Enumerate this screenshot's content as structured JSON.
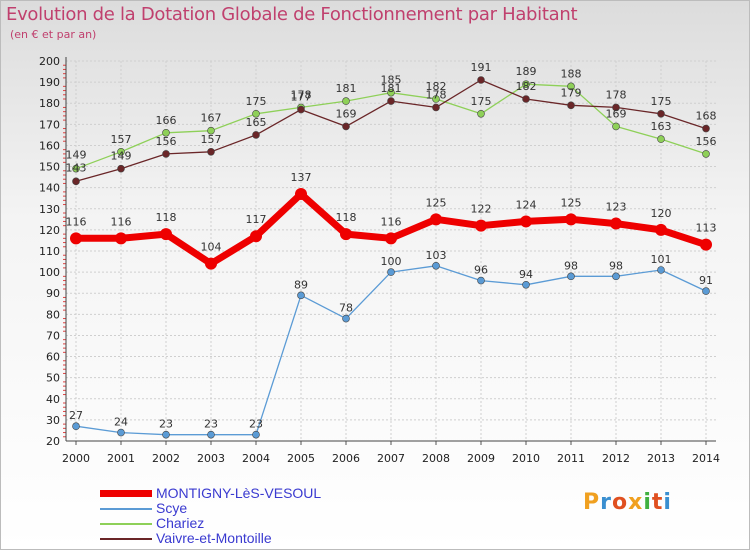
{
  "title": "Evolution de la Dotation Globale de Fonctionnement par Habitant",
  "subtitle": "(en € et par an)",
  "logo": {
    "text": "Proxiti",
    "colors": [
      "#f0a020",
      "#3a8fd0",
      "#e05020",
      "#f0a020",
      "#40b040",
      "#e05020",
      "#3a8fd0"
    ]
  },
  "chart_data": {
    "type": "line",
    "title": "Evolution de la Dotation Globale de Fonctionnement par Habitant",
    "ylabel": "(en € et par an)",
    "xlabel": "",
    "x": [
      "2000",
      "2001",
      "2002",
      "2003",
      "2004",
      "2005",
      "2006",
      "2007",
      "2008",
      "2009",
      "2010",
      "2011",
      "2012",
      "2013",
      "2014"
    ],
    "ylim": [
      20,
      200
    ],
    "yticks": [
      "20",
      "30",
      "40",
      "50",
      "60",
      "70",
      "80",
      "90",
      "100",
      "110",
      "120",
      "130",
      "140",
      "150",
      "160",
      "170",
      "180",
      "190",
      "200"
    ],
    "grid": true,
    "legend_position": "bottom-left",
    "series": [
      {
        "name": "Scye",
        "color": "#5b9bd5",
        "values": [
          27,
          24,
          23,
          23,
          23,
          89,
          78,
          100,
          103,
          96,
          94,
          98,
          98,
          101,
          91
        ],
        "labels": [
          "27",
          "24",
          "23",
          "23",
          "23",
          "89",
          "78",
          "100",
          "103",
          "96",
          "94",
          "98",
          "98",
          "101",
          "91"
        ]
      },
      {
        "name": "Chariez",
        "color": "#8ed058",
        "values": [
          149,
          157,
          166,
          167,
          175,
          178,
          181,
          185,
          182,
          175,
          189,
          188,
          169,
          163,
          156
        ],
        "labels": [
          "149",
          "157",
          "166",
          "167",
          "175",
          "178",
          "181",
          "185",
          "182",
          "175",
          "189",
          "188",
          "169",
          "163",
          "156"
        ]
      },
      {
        "name": "Vaivre-et-Montoille",
        "color": "#6a2628",
        "values": [
          143,
          149,
          156,
          157,
          165,
          177,
          169,
          181,
          178,
          191,
          182,
          179,
          178,
          175,
          168
        ],
        "labels": [
          "143",
          "149",
          "156",
          "157",
          "165",
          "177",
          "169",
          "181",
          "178",
          "191",
          "182",
          "179",
          "178",
          "175",
          "168"
        ]
      },
      {
        "name": "MONTIGNY-LèS-VESOUL",
        "color": "#ee0000",
        "values": [
          116,
          116,
          118,
          104,
          117,
          137,
          118,
          116,
          125,
          122,
          124,
          125,
          123,
          120,
          113
        ],
        "labels": [
          "116",
          "116",
          "118",
          "104",
          "117",
          "137",
          "118",
          "116",
          "125",
          "122",
          "124",
          "125",
          "123",
          "120",
          "113"
        ]
      }
    ],
    "legend": [
      "MONTIGNY-LèS-VESOUL",
      "Scye",
      "Chariez",
      "Vaivre-et-Montoille"
    ]
  }
}
